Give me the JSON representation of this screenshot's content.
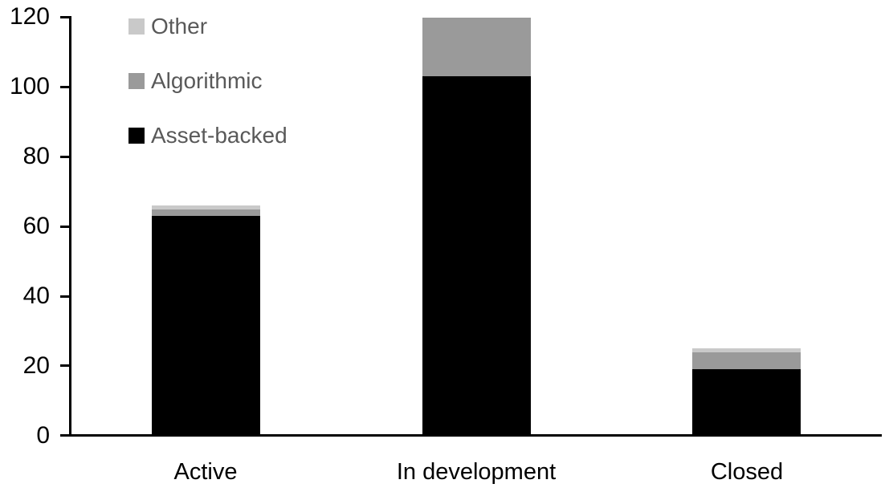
{
  "chart_data": {
    "type": "bar",
    "stacked": true,
    "title": "",
    "xlabel": "",
    "ylabel": "",
    "categories": [
      "Active",
      "In development",
      "Closed"
    ],
    "series": [
      {
        "name": "Other",
        "color": "#c9c9c9",
        "values": [
          1,
          0,
          1
        ]
      },
      {
        "name": "Algorithmic",
        "color": "#9a9a9a",
        "values": [
          2,
          17,
          5
        ]
      },
      {
        "name": "Asset-backed",
        "color": "#000000",
        "values": [
          63,
          103,
          19
        ]
      }
    ],
    "stack_order_bottom_to_top": [
      "Asset-backed",
      "Algorithmic",
      "Other"
    ],
    "totals": [
      66,
      120,
      25
    ],
    "ylim": [
      0,
      120
    ],
    "yticks": [
      "0",
      "20",
      "40",
      "60",
      "80",
      "100",
      "120"
    ],
    "grid": false,
    "legend_position": "top-left-inside-plot"
  },
  "colors": {
    "background": "#ffffff",
    "axis": "#000000",
    "tick_label_text": "#000000",
    "legend_text": "#595959"
  }
}
